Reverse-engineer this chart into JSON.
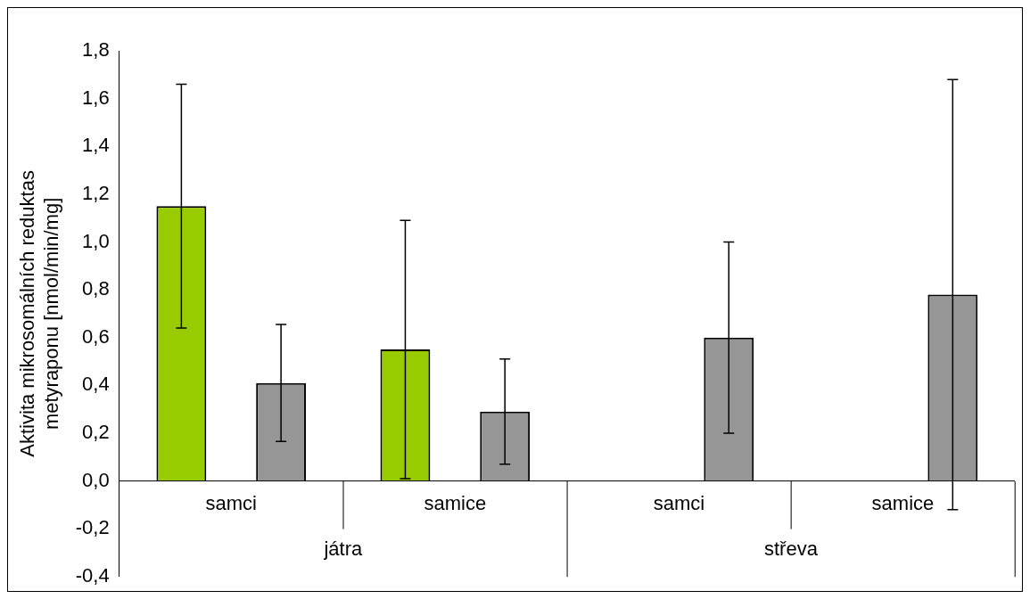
{
  "chart_data": {
    "type": "bar",
    "ylabel": "Aktivita mikrosomálních reduktas metyraponu [nmol/min/mg]",
    "categories": [
      "samci",
      "samice",
      "samci",
      "samice"
    ],
    "annotations": [
      "játra",
      "střeva"
    ],
    "series": [
      {
        "color": "#99cc00",
        "values": [
          1.15,
          0.55,
          null,
          null
        ],
        "errors": [
          0.51,
          0.54,
          null,
          null
        ]
      },
      {
        "color": "#969696",
        "values": [
          0.41,
          0.29,
          0.6,
          0.78
        ],
        "errors": [
          0.245,
          0.22,
          0.4,
          0.9
        ]
      }
    ],
    "ylim": [
      -0.4,
      1.8
    ],
    "yticks": [
      {
        "value": -0.4,
        "label": "-0,4"
      },
      {
        "value": -0.2,
        "label": "-0,2"
      },
      {
        "value": 0,
        "label": "0,0"
      },
      {
        "value": 0.2,
        "label": "0,2"
      },
      {
        "value": 0.4,
        "label": "0,4"
      },
      {
        "value": 0.6,
        "label": "0,6"
      },
      {
        "value": 0.8,
        "label": "0,8"
      },
      {
        "value": 1.0,
        "label": "1,0"
      },
      {
        "value": 1.2,
        "label": "1,2"
      },
      {
        "value": 1.4,
        "label": "1,4"
      },
      {
        "value": 1.6,
        "label": "1,6"
      },
      {
        "value": 1.8,
        "label": "1,8"
      }
    ],
    "grid": false,
    "legend": false
  }
}
